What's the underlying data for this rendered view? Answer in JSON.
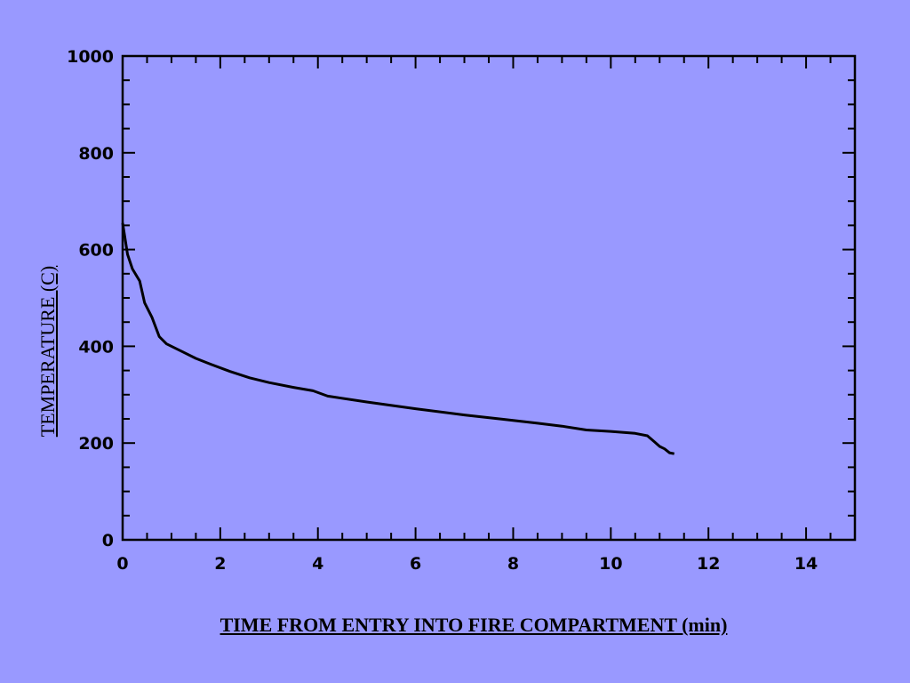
{
  "chart_data": {
    "type": "line",
    "title": "",
    "xlabel": "TIME FROM ENTRY INTO FIRE COMPARTMENT (min)",
    "ylabel": "TEMPERATURE (C)",
    "xlim": [
      0,
      15
    ],
    "ylim": [
      0,
      1000
    ],
    "x_ticks": [
      0,
      2,
      4,
      6,
      8,
      10,
      12,
      14
    ],
    "y_ticks": [
      0,
      200,
      400,
      600,
      800,
      1000
    ],
    "grid": false,
    "line_color": "#000000",
    "background_color": "#9999ff",
    "series": [
      {
        "x": [
          0,
          0.1,
          0.2,
          0.35,
          0.45,
          0.6,
          0.75,
          0.9,
          1.2,
          1.5,
          1.8,
          2.2,
          2.6,
          3.0,
          3.5,
          3.9,
          4.2,
          5.0,
          6.0,
          7.0,
          7.8,
          8.5,
          9.0,
          9.5,
          10.0,
          10.5,
          10.75,
          10.9,
          11.0,
          11.1,
          11.2,
          11.3
        ],
        "y": [
          655,
          590,
          560,
          535,
          490,
          460,
          420,
          405,
          390,
          375,
          363,
          348,
          335,
          325,
          315,
          308,
          297,
          285,
          271,
          258,
          249,
          241,
          235,
          227,
          224,
          220,
          215,
          202,
          193,
          188,
          180,
          178
        ]
      }
    ]
  }
}
